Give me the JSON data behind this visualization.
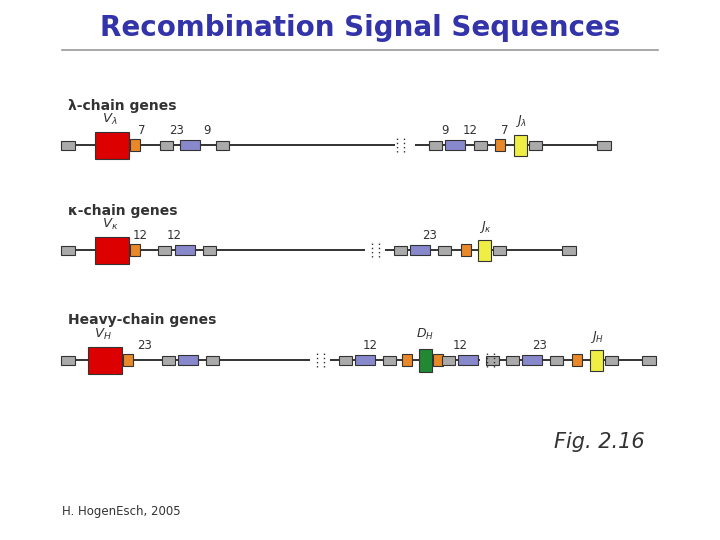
{
  "title": "Recombination Signal Sequences",
  "title_color": "#3333AA",
  "title_fontsize": 20,
  "bg_color": "#FFFFFF",
  "footer_text": "H. HogenEsch, 2005",
  "fig_label": "Fig. 2.16",
  "colors": {
    "red": "#DD0000",
    "orange": "#E88828",
    "gray": "#AAAAAA",
    "purple": "#8888CC",
    "yellow": "#EEEE44",
    "green": "#228833",
    "line": "#333333",
    "white": "#FFFFFF"
  },
  "lambda_label": "λ-chain genes",
  "kappa_label": "κ-chain genes",
  "heavy_label": "Heavy-chain genes"
}
